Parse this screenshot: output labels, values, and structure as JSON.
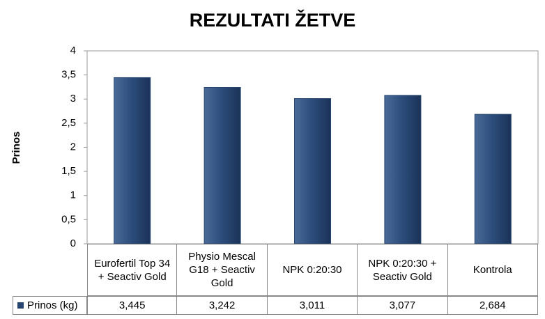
{
  "chart_data": {
    "type": "bar",
    "title": "REZULTATI ŽETVE",
    "y_label": "Prinos",
    "categories": [
      "Eurofertil Top 34 + Seactiv Gold",
      "Physio Mescal G18 + Seactiv Gold",
      "NPK 0:20:30",
      "NPK 0:20:30 + Seactiv Gold",
      "Kontrola"
    ],
    "series": [
      {
        "name": "Prinos (kg)",
        "color": "#264671",
        "values": [
          3.445,
          3.242,
          3.011,
          3.077,
          2.684
        ],
        "value_labels": [
          "3,445",
          "3,242",
          "3,011",
          "3,077",
          "2,684"
        ]
      }
    ],
    "ylim": [
      0,
      4
    ],
    "yticks": [
      0,
      {
        "value": 0.5,
        "label": "0,5"
      },
      1,
      {
        "value": 1.5,
        "label": "1,5"
      },
      2,
      {
        "value": 2.5,
        "label": "2,5"
      },
      3,
      {
        "value": 3.5,
        "label": "3,5"
      },
      4
    ],
    "grid": false
  }
}
